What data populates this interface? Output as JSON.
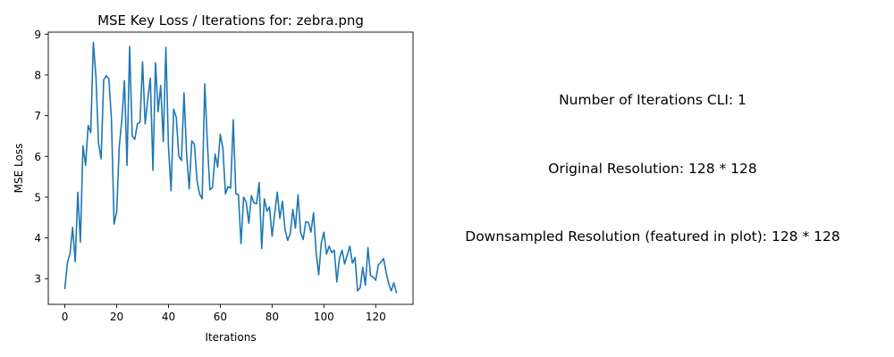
{
  "chart_data": {
    "type": "line",
    "title": "MSE Key Loss / Iterations for: zebra.png",
    "xlabel": "Iterations",
    "ylabel": "MSE Loss",
    "xlim": [
      -6.4,
      134.4
    ],
    "ylim": [
      2.37,
      9.05
    ],
    "xticks": [
      0,
      20,
      40,
      60,
      80,
      100,
      120
    ],
    "yticks": [
      3,
      4,
      5,
      6,
      7,
      8,
      9
    ],
    "grid": false,
    "color": "#1f77b4",
    "series": [
      {
        "x": [
          0,
          1,
          2,
          3,
          4,
          5,
          6,
          7,
          8,
          9,
          10,
          11,
          12,
          13,
          14,
          15,
          16,
          17,
          18,
          19,
          20,
          21,
          22,
          23,
          24,
          25,
          26,
          27,
          28,
          29,
          30,
          31,
          32,
          33,
          34,
          35,
          36,
          37,
          38,
          39,
          40,
          41,
          42,
          43,
          44,
          45,
          46,
          47,
          48,
          49,
          50,
          51,
          52,
          53,
          54,
          55,
          56,
          57,
          58,
          59,
          60,
          61,
          62,
          63,
          64,
          65,
          66,
          67,
          68,
          69,
          70,
          71,
          72,
          73,
          74,
          75,
          76,
          77,
          78,
          79,
          80,
          81,
          82,
          83,
          84,
          85,
          86,
          87,
          88,
          89,
          90,
          91,
          92,
          93,
          94,
          95,
          96,
          97,
          98,
          99,
          100,
          101,
          102,
          103,
          104,
          105,
          106,
          107,
          108,
          109,
          110,
          111,
          112,
          113,
          114,
          115,
          116,
          117,
          118,
          119,
          120,
          121,
          122,
          123,
          124,
          125,
          126,
          127,
          128
        ],
        "values": [
          2.76,
          3.4,
          3.62,
          4.26,
          3.42,
          5.12,
          3.9,
          6.26,
          5.78,
          6.76,
          6.58,
          8.8,
          7.96,
          6.32,
          5.94,
          7.88,
          7.98,
          7.9,
          6.9,
          4.34,
          4.64,
          6.24,
          6.9,
          7.86,
          5.78,
          8.7,
          6.5,
          6.42,
          6.8,
          6.84,
          8.32,
          6.8,
          7.4,
          7.92,
          5.66,
          8.3,
          7.1,
          7.74,
          6.36,
          8.68,
          6.24,
          5.16,
          7.16,
          6.96,
          6.0,
          5.9,
          7.56,
          6.06,
          5.2,
          6.38,
          6.3,
          5.42,
          5.08,
          4.96,
          7.78,
          6.34,
          5.18,
          5.24,
          6.06,
          5.74,
          6.54,
          6.2,
          5.08,
          5.26,
          5.22,
          6.9,
          5.08,
          5.06,
          3.86,
          5.0,
          4.88,
          4.36,
          5.04,
          4.86,
          4.84,
          5.36,
          3.74,
          4.96,
          4.66,
          4.76,
          4.04,
          4.6,
          5.12,
          4.48,
          4.9,
          4.2,
          3.94,
          4.1,
          4.7,
          4.24,
          5.06,
          4.14,
          3.96,
          4.4,
          4.38,
          4.14,
          4.62,
          3.64,
          3.1,
          3.88,
          4.14,
          3.6,
          3.8,
          3.64,
          3.7,
          2.92,
          3.5,
          3.7,
          3.36,
          3.58,
          3.8,
          3.38,
          3.52,
          2.7,
          2.78,
          3.28,
          2.84,
          3.76,
          3.08,
          3.04,
          2.96,
          3.34,
          3.4,
          3.5,
          3.16,
          2.88,
          2.7,
          2.9,
          2.66
        ]
      }
    ]
  },
  "info": {
    "iterations_cli": "Number of Iterations CLI: 1",
    "original_resolution": "Original Resolution: 128 * 128",
    "downsampled_resolution": "Downsampled Resolution (featured in plot): 128 * 128"
  }
}
